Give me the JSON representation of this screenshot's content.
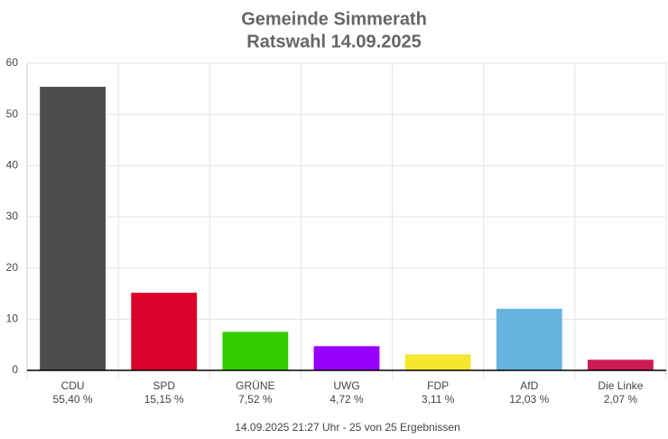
{
  "chart_data": {
    "type": "bar",
    "title": "Gemeinde Simmerath",
    "subtitle": "Ratswahl 14.09.2025",
    "categories": [
      "CDU",
      "SPD",
      "GRÜNE",
      "UWG",
      "FDP",
      "AfD",
      "Die Linke"
    ],
    "values": [
      55.4,
      15.15,
      7.52,
      4.72,
      3.11,
      12.03,
      2.07
    ],
    "value_labels": [
      "55,40 %",
      "15,15 %",
      "7,52 %",
      "4,72 %",
      "3,11 %",
      "12,03 %",
      "2,07 %"
    ],
    "colors": [
      "#4d4d4d",
      "#d9002b",
      "#33cc00",
      "#9900ff",
      "#f5e62f",
      "#66b3e0",
      "#cc1a52"
    ],
    "ylim": [
      0,
      60
    ],
    "yticks": [
      0,
      10,
      20,
      30,
      40,
      50,
      60
    ],
    "grid": true,
    "footer": "14.09.2025 21:27 Uhr - 25 von 25 Ergebnissen"
  }
}
